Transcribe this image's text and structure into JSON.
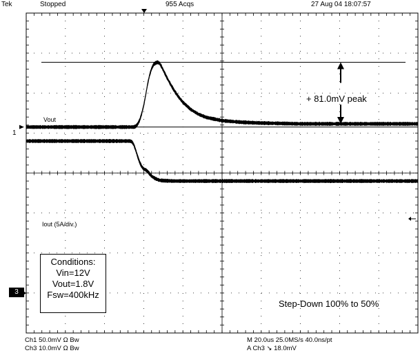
{
  "header": {
    "brand": "Tek",
    "state": "Stopped",
    "acqs": "955 Acqs",
    "datetime": "27 Aug 04 18:07:57"
  },
  "annotations": {
    "peak_label": "+ 81.0mV peak",
    "vout_label": "Vout",
    "iout_label": "Iout (5A/div.)",
    "step_label": "Step-Down 100% to 50%"
  },
  "conditions": {
    "title": "Conditions:",
    "vin": "Vin=12V",
    "vout": "Vout=1.8V",
    "fsw": "Fsw=400kHz"
  },
  "channel_markers": {
    "ch1": "1",
    "ch3": "3"
  },
  "footer": {
    "ch1_line": "Ch1    50.0mV  Ω  Bw",
    "ch3_line": "Ch3    10.0mV  Ω  Bw",
    "timebase_line": "M 20.0us  25.0MS/s    40.0ns/pt",
    "trigger_line": "A  Ch3  ↘  18.0mV"
  },
  "colors": {
    "trace": "#000000",
    "grid": "#000000",
    "background": "#ffffff"
  },
  "chart_data": {
    "type": "line",
    "time_div_us": 20,
    "x_divisions": 10,
    "y_divisions": 8,
    "series": [
      {
        "name": "Vout",
        "units": "mV",
        "scale_per_div": 50.0,
        "offset_div": 1.15,
        "points": [
          [
            0,
            0
          ],
          [
            55,
            0
          ],
          [
            56,
            1
          ],
          [
            57,
            4
          ],
          [
            58,
            9
          ],
          [
            59,
            17
          ],
          [
            60,
            27
          ],
          [
            61,
            40
          ],
          [
            62,
            54
          ],
          [
            63,
            65
          ],
          [
            64,
            73
          ],
          [
            65,
            78
          ],
          [
            66,
            80
          ],
          [
            67,
            81
          ],
          [
            68,
            80
          ],
          [
            69,
            76
          ],
          [
            70,
            71
          ],
          [
            72,
            61
          ],
          [
            74,
            52
          ],
          [
            76,
            44
          ],
          [
            78,
            37
          ],
          [
            80,
            31
          ],
          [
            84,
            22
          ],
          [
            88,
            16
          ],
          [
            92,
            12
          ],
          [
            96,
            10
          ],
          [
            100,
            8
          ],
          [
            110,
            6
          ],
          [
            120,
            5
          ],
          [
            140,
            4
          ],
          [
            160,
            4
          ],
          [
            180,
            4
          ],
          [
            200,
            4
          ]
        ]
      },
      {
        "name": "Iout",
        "units": "A",
        "scale_per_div": 5,
        "offset_div": -0.2,
        "points": [
          [
            0,
            5.0
          ],
          [
            53,
            5.0
          ],
          [
            54,
            4.9
          ],
          [
            55,
            4.5
          ],
          [
            56,
            3.8
          ],
          [
            57,
            3.0
          ],
          [
            58,
            2.3
          ],
          [
            59,
            1.8
          ],
          [
            60,
            1.5
          ],
          [
            61,
            1.4
          ],
          [
            62,
            1.2
          ],
          [
            63,
            0.9
          ],
          [
            64,
            0.6
          ],
          [
            65,
            0.45
          ],
          [
            66,
            0.3
          ],
          [
            67,
            0.2
          ],
          [
            68,
            0.1
          ],
          [
            70,
            0.05
          ],
          [
            75,
            0
          ],
          [
            200,
            0
          ]
        ]
      }
    ]
  }
}
